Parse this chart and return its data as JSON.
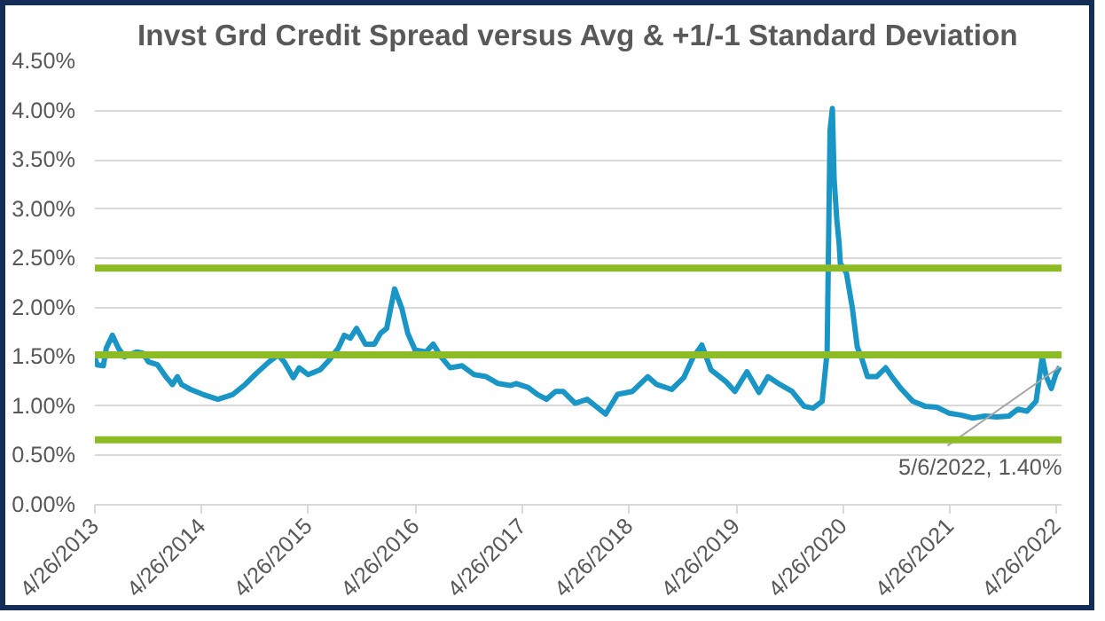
{
  "chart_data": {
    "type": "line",
    "title": "Invst Grd Credit Spread versus Avg & +1/-1 Standard Deviation",
    "x": [
      "2013-04-26",
      "2013-05-04",
      "2013-05-25",
      "2013-06-04",
      "2013-06-25",
      "2013-07-15",
      "2013-08-05",
      "2013-09-15",
      "2013-10-06",
      "2013-10-26",
      "2013-11-26",
      "2013-12-27",
      "2014-01-16",
      "2014-02-02",
      "2014-02-16",
      "2014-03-19",
      "2014-04-30",
      "2014-06-20",
      "2014-07-21",
      "2014-08-11",
      "2014-09-21",
      "2014-11-01",
      "2014-12-12",
      "2015-01-12",
      "2015-02-02",
      "2015-03-05",
      "2015-03-25",
      "2015-04-25",
      "2015-06-05",
      "2015-07-06",
      "2015-08-06",
      "2015-08-26",
      "2015-09-16",
      "2015-10-07",
      "2015-11-06",
      "2015-12-07",
      "2015-12-28",
      "2016-01-18",
      "2016-02-14",
      "2016-03-10",
      "2016-03-30",
      "2016-04-24",
      "2016-05-31",
      "2016-06-25",
      "2016-07-22",
      "2016-08-22",
      "2016-10-02",
      "2016-11-12",
      "2016-12-23",
      "2017-02-02",
      "2017-03-15",
      "2017-04-05",
      "2017-05-16",
      "2017-06-16",
      "2017-07-17",
      "2017-08-17",
      "2017-09-12",
      "2017-10-23",
      "2017-12-03",
      "2018-02-04",
      "2018-03-17",
      "2018-05-07",
      "2018-06-28",
      "2018-07-29",
      "2018-09-18",
      "2018-10-29",
      "2018-11-29",
      "2018-12-30",
      "2019-01-30",
      "2019-03-22",
      "2019-04-22",
      "2019-06-02",
      "2019-07-13",
      "2019-08-13",
      "2019-09-23",
      "2019-11-03",
      "2019-12-14",
      "2020-01-14",
      "2020-02-14",
      "2020-03-02",
      "2020-03-12",
      "2020-03-20",
      "2020-03-26",
      "2020-04-04",
      "2020-04-12",
      "2020-04-16",
      "2020-05-07",
      "2020-05-27",
      "2020-06-13",
      "2020-06-29",
      "2020-07-18",
      "2020-08-18",
      "2020-09-18",
      "2020-10-09",
      "2020-11-09",
      "2020-12-20",
      "2021-01-30",
      "2021-03-12",
      "2021-04-22",
      "2021-06-02",
      "2021-07-13",
      "2021-08-23",
      "2021-10-03",
      "2021-11-13",
      "2021-12-14",
      "2022-01-14",
      "2022-02-14",
      "2022-03-07",
      "2022-03-21",
      "2022-04-07",
      "2022-04-23",
      "2022-05-06"
    ],
    "series": [
      {
        "color": "#1a96c6",
        "values": [
          1.49,
          1.42,
          1.41,
          1.59,
          1.72,
          1.59,
          1.5,
          1.55,
          1.54,
          1.45,
          1.42,
          1.29,
          1.22,
          1.3,
          1.22,
          1.17,
          1.12,
          1.07,
          1.1,
          1.12,
          1.22,
          1.34,
          1.45,
          1.52,
          1.45,
          1.29,
          1.39,
          1.32,
          1.37,
          1.47,
          1.59,
          1.72,
          1.69,
          1.79,
          1.63,
          1.63,
          1.74,
          1.79,
          2.19,
          1.99,
          1.74,
          1.57,
          1.55,
          1.63,
          1.5,
          1.39,
          1.41,
          1.32,
          1.3,
          1.23,
          1.21,
          1.23,
          1.19,
          1.12,
          1.07,
          1.15,
          1.15,
          1.03,
          1.07,
          0.92,
          1.12,
          1.15,
          1.3,
          1.22,
          1.17,
          1.29,
          1.49,
          1.62,
          1.37,
          1.25,
          1.15,
          1.35,
          1.14,
          1.3,
          1.22,
          1.15,
          1.0,
          0.98,
          1.05,
          1.55,
          3.8,
          4.02,
          3.3,
          2.9,
          2.65,
          2.45,
          2.35,
          2.0,
          1.6,
          1.48,
          1.3,
          1.3,
          1.39,
          1.3,
          1.18,
          1.05,
          1.0,
          0.99,
          0.93,
          0.91,
          0.88,
          0.9,
          0.89,
          0.9,
          0.97,
          0.95,
          1.05,
          1.5,
          1.3,
          1.18,
          1.33,
          1.4
        ]
      }
    ],
    "xlim": [
      "2013-04-26",
      "2022-05-12"
    ],
    "xticks": [
      {
        "value": "2013-04-26",
        "label": "4/26/2013"
      },
      {
        "value": "2014-04-26",
        "label": "4/26/2014"
      },
      {
        "value": "2015-04-26",
        "label": "4/26/2015"
      },
      {
        "value": "2016-04-26",
        "label": "4/26/2016"
      },
      {
        "value": "2017-04-26",
        "label": "4/26/2017"
      },
      {
        "value": "2018-04-26",
        "label": "4/26/2018"
      },
      {
        "value": "2019-04-26",
        "label": "4/26/2019"
      },
      {
        "value": "2020-04-26",
        "label": "4/26/2020"
      },
      {
        "value": "2021-04-26",
        "label": "4/26/2021"
      },
      {
        "value": "2022-04-26",
        "label": "4/26/2022"
      }
    ],
    "ylim": [
      0,
      4.5
    ],
    "yticks": [
      {
        "value": 0,
        "label": "0.00%"
      },
      {
        "value": 0.5,
        "label": "0.50%"
      },
      {
        "value": 1,
        "label": "1.00%"
      },
      {
        "value": 1.5,
        "label": "1.50%"
      },
      {
        "value": 2,
        "label": "2.00%"
      },
      {
        "value": 2.5,
        "label": "2.50%"
      },
      {
        "value": 3,
        "label": "3.00%"
      },
      {
        "value": 3.5,
        "label": "3.50%"
      },
      {
        "value": 4,
        "label": "4.00%"
      },
      {
        "value": 4.5,
        "label": "4.50%"
      }
    ],
    "ref_lines": [
      {
        "axis": "y",
        "value": 2.4,
        "color": "#8cbb25"
      },
      {
        "axis": "y",
        "value": 1.52,
        "color": "#8cbb25"
      },
      {
        "axis": "y",
        "value": 0.66,
        "color": "#8cbb25"
      }
    ],
    "annotations": [
      {
        "text": "5/6/2022, 1.40%",
        "x": "2022-05-06",
        "y": 1.4
      }
    ],
    "grid": "y",
    "marker": "none",
    "line_style": "solid"
  }
}
